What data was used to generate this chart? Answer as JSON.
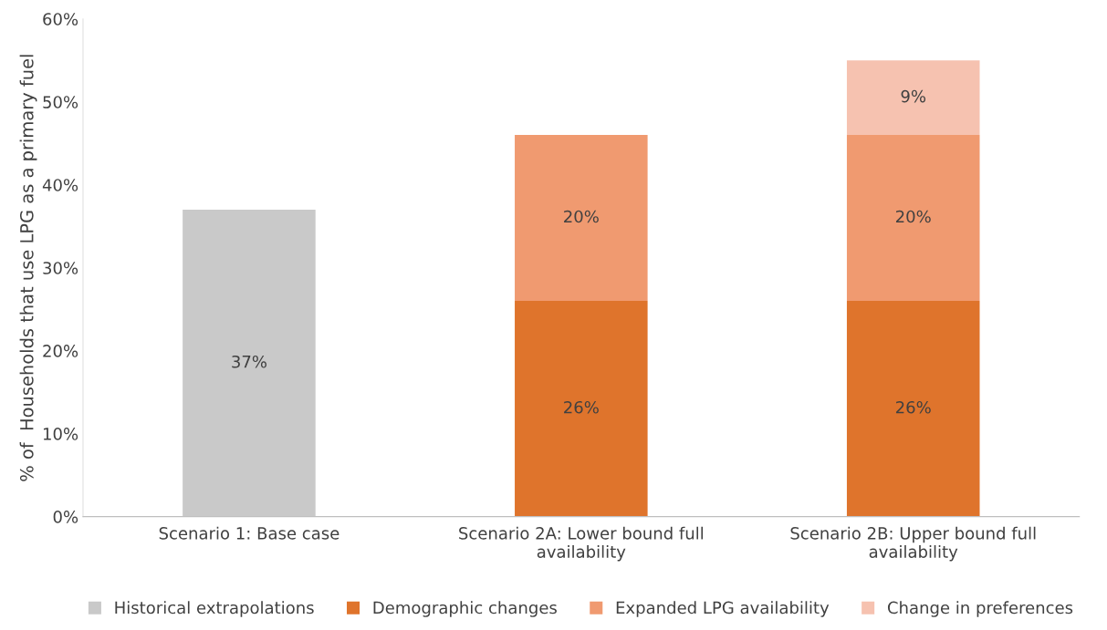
{
  "chart_data": {
    "type": "bar",
    "stacked": true,
    "ylabel": "% of  Households that use LPG as a primary fuel",
    "categories": [
      "Scenario 1: Base case",
      "Scenario 2A: Lower bound full\navailability",
      "Scenario 2B: Upper bound full\navailability"
    ],
    "series": [
      {
        "name": "Historical extrapolations",
        "color": "#c9c9c9",
        "values": [
          37,
          null,
          null
        ],
        "value_labels": [
          "37%",
          null,
          null
        ]
      },
      {
        "name": "Demographic changes",
        "color": "#df742c",
        "values": [
          null,
          26,
          26
        ],
        "value_labels": [
          null,
          "26%",
          "26%"
        ]
      },
      {
        "name": "Expanded LPG availability",
        "color": "#f09a70",
        "values": [
          null,
          20,
          20
        ],
        "value_labels": [
          null,
          "20%",
          "20%"
        ]
      },
      {
        "name": "Change in preferences",
        "color": "#f6c2b0",
        "values": [
          null,
          null,
          9
        ],
        "value_labels": [
          null,
          null,
          "9%"
        ]
      }
    ],
    "ylim": [
      0,
      60
    ],
    "yticks": [
      {
        "value": 0,
        "label": "0%"
      },
      {
        "value": 10,
        "label": "10%"
      },
      {
        "value": 20,
        "label": "20%"
      },
      {
        "value": 30,
        "label": "30%"
      },
      {
        "value": 40,
        "label": "40%"
      },
      {
        "value": 50,
        "label": "50%"
      },
      {
        "value": 60,
        "label": "60%"
      }
    ],
    "grid": false,
    "legend": "bottom"
  }
}
